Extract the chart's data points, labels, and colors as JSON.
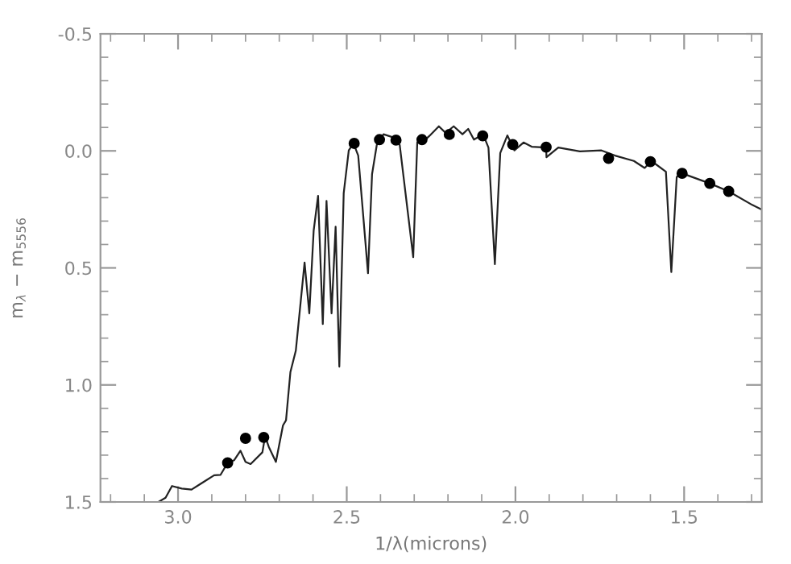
{
  "chart_data": {
    "type": "line",
    "xlabel": "1/λ(microns)",
    "ylabel": "m$_{λ}$ − m$_{5556}$",
    "xlim": [
      3.23,
      1.27
    ],
    "ylim": [
      1.5,
      -0.5
    ],
    "xticks": [
      {
        "value": 3.2,
        "label": null
      },
      {
        "value": 3.1,
        "label": null
      },
      {
        "value": 3.0,
        "label": "3.0"
      },
      {
        "value": 2.9,
        "label": null
      },
      {
        "value": 2.8,
        "label": null
      },
      {
        "value": 2.7,
        "label": null
      },
      {
        "value": 2.6,
        "label": null
      },
      2.5,
      {
        "value": 2.4,
        "label": null
      },
      {
        "value": 2.3,
        "label": null
      },
      {
        "value": 2.2,
        "label": null
      },
      {
        "value": 2.1,
        "label": null
      },
      {
        "value": 2.0,
        "label": "2.0"
      },
      {
        "value": 1.9,
        "label": null
      },
      {
        "value": 1.8,
        "label": null
      },
      {
        "value": 1.7,
        "label": null
      },
      {
        "value": 1.6,
        "label": null
      },
      1.5,
      {
        "value": 1.4,
        "label": null
      },
      {
        "value": 1.3,
        "label": null
      }
    ],
    "yticks": [
      -0.5,
      {
        "value": -0.4,
        "label": null
      },
      {
        "value": -0.3,
        "label": null
      },
      {
        "value": -0.2,
        "label": null
      },
      {
        "value": -0.1,
        "label": null
      },
      {
        "value": 0.0,
        "label": "0.0"
      },
      {
        "value": 0.1,
        "label": null
      },
      {
        "value": 0.2,
        "label": null
      },
      {
        "value": 0.3,
        "label": null
      },
      {
        "value": 0.4,
        "label": null
      },
      0.5,
      {
        "value": 0.6,
        "label": null
      },
      {
        "value": 0.7,
        "label": null
      },
      {
        "value": 0.8,
        "label": null
      },
      {
        "value": 0.9,
        "label": null
      },
      {
        "value": 1.0,
        "label": "1.0"
      },
      {
        "value": 1.1,
        "label": null
      },
      {
        "value": 1.2,
        "label": null
      },
      {
        "value": 1.3,
        "label": null
      },
      {
        "value": 1.4,
        "label": null
      },
      1.5
    ],
    "grid": false,
    "series": [
      {
        "color": "#222222",
        "marker": "none",
        "line_style": "solid",
        "x": [
          3.056,
          3.037,
          3.018,
          2.989,
          2.96,
          2.936,
          2.893,
          2.874,
          2.853,
          2.834,
          2.815,
          2.8,
          2.785,
          2.75,
          2.742,
          2.731,
          2.71,
          2.689,
          2.68,
          2.667,
          2.651,
          2.625,
          2.611,
          2.598,
          2.585,
          2.571,
          2.56,
          2.545,
          2.533,
          2.522,
          2.509,
          2.494,
          2.48,
          2.466,
          2.437,
          2.425,
          2.411,
          2.391,
          2.367,
          2.343,
          2.303,
          2.291,
          2.272,
          2.255,
          2.227,
          2.207,
          2.183,
          2.157,
          2.14,
          2.123,
          2.096,
          2.08,
          2.061,
          2.045,
          2.024,
          2.003,
          1.976,
          1.952,
          1.909,
          1.908,
          1.873,
          1.809,
          1.745,
          1.705,
          1.649,
          1.617,
          1.597,
          1.554,
          1.538,
          1.522,
          1.506,
          1.424,
          1.368,
          1.298,
          1.27
        ],
        "values": [
          1.498,
          1.482,
          1.432,
          1.443,
          1.447,
          1.425,
          1.386,
          1.384,
          1.333,
          1.322,
          1.281,
          1.329,
          1.338,
          1.288,
          1.219,
          1.265,
          1.329,
          1.173,
          1.151,
          0.945,
          0.854,
          0.477,
          0.694,
          0.34,
          0.192,
          0.74,
          0.214,
          0.694,
          0.324,
          0.922,
          0.18,
          -0.002,
          -0.032,
          0.02,
          0.523,
          0.1,
          -0.025,
          -0.071,
          -0.06,
          -0.025,
          0.454,
          -0.036,
          -0.041,
          -0.064,
          -0.105,
          -0.077,
          -0.105,
          -0.071,
          -0.094,
          -0.048,
          -0.071,
          -0.014,
          0.484,
          0.009,
          -0.066,
          -0.002,
          -0.036,
          -0.018,
          -0.014,
          0.027,
          -0.014,
          0.002,
          -0.002,
          0.02,
          0.043,
          0.073,
          0.043,
          0.089,
          0.518,
          0.112,
          0.096,
          0.139,
          0.173,
          0.231,
          0.251
        ]
      },
      {
        "type": "scatter",
        "color": "#000000",
        "marker": "circle",
        "x": [
          2.853,
          2.8,
          2.746,
          2.478,
          2.403,
          2.354,
          2.277,
          2.196,
          2.097,
          2.008,
          1.909,
          1.724,
          1.6,
          1.506,
          1.424,
          1.368
        ],
        "values": [
          1.333,
          1.228,
          1.224,
          -0.032,
          -0.048,
          -0.046,
          -0.048,
          -0.07,
          -0.064,
          -0.027,
          -0.016,
          0.032,
          0.046,
          0.096,
          0.139,
          0.173
        ]
      }
    ]
  }
}
